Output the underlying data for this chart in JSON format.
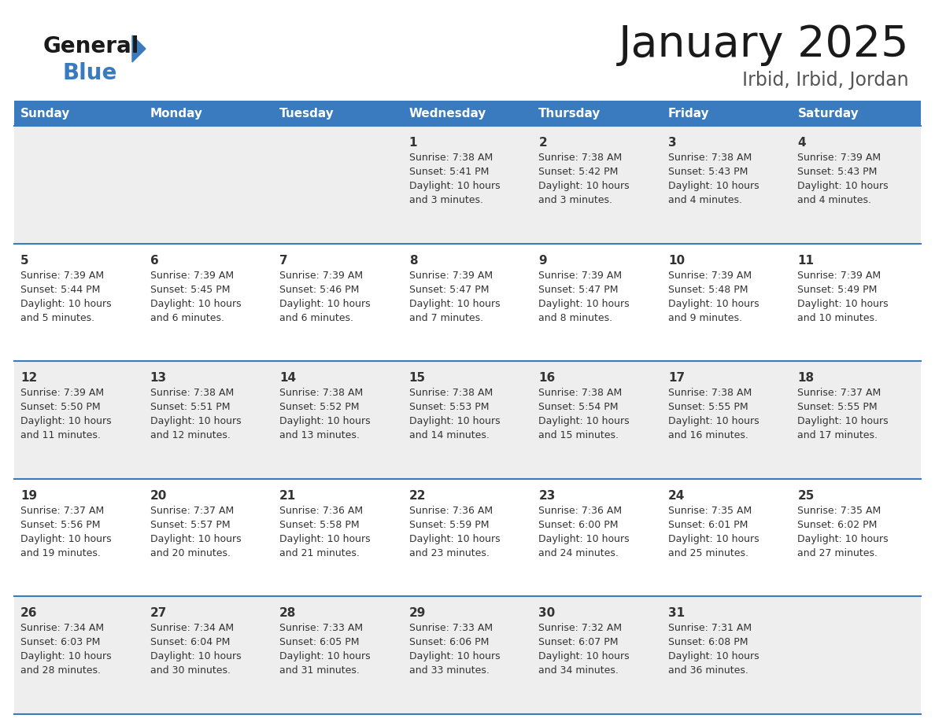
{
  "title": "January 2025",
  "subtitle": "Irbid, Irbid, Jordan",
  "header_color": "#3a7bbf",
  "header_text_color": "#ffffff",
  "day_names": [
    "Sunday",
    "Monday",
    "Tuesday",
    "Wednesday",
    "Thursday",
    "Friday",
    "Saturday"
  ],
  "row_colors": [
    "#eeeeee",
    "#ffffff",
    "#eeeeee",
    "#ffffff",
    "#eeeeee"
  ],
  "border_color": "#3a7bbf",
  "cell_text_color": "#333333",
  "day_num_color": "#333333",
  "title_fontsize": 36,
  "subtitle_fontsize": 16,
  "header_fontsize": 11,
  "day_num_fontsize": 11,
  "cell_fontsize": 9,
  "calendar": [
    [
      {
        "day": null,
        "sunrise": null,
        "sunset": null,
        "daylight": null
      },
      {
        "day": null,
        "sunrise": null,
        "sunset": null,
        "daylight": null
      },
      {
        "day": null,
        "sunrise": null,
        "sunset": null,
        "daylight": null
      },
      {
        "day": 1,
        "sunrise": "7:38 AM",
        "sunset": "5:41 PM",
        "daylight": "10 hours\nand 3 minutes."
      },
      {
        "day": 2,
        "sunrise": "7:38 AM",
        "sunset": "5:42 PM",
        "daylight": "10 hours\nand 3 minutes."
      },
      {
        "day": 3,
        "sunrise": "7:38 AM",
        "sunset": "5:43 PM",
        "daylight": "10 hours\nand 4 minutes."
      },
      {
        "day": 4,
        "sunrise": "7:39 AM",
        "sunset": "5:43 PM",
        "daylight": "10 hours\nand 4 minutes."
      }
    ],
    [
      {
        "day": 5,
        "sunrise": "7:39 AM",
        "sunset": "5:44 PM",
        "daylight": "10 hours\nand 5 minutes."
      },
      {
        "day": 6,
        "sunrise": "7:39 AM",
        "sunset": "5:45 PM",
        "daylight": "10 hours\nand 6 minutes."
      },
      {
        "day": 7,
        "sunrise": "7:39 AM",
        "sunset": "5:46 PM",
        "daylight": "10 hours\nand 6 minutes."
      },
      {
        "day": 8,
        "sunrise": "7:39 AM",
        "sunset": "5:47 PM",
        "daylight": "10 hours\nand 7 minutes."
      },
      {
        "day": 9,
        "sunrise": "7:39 AM",
        "sunset": "5:47 PM",
        "daylight": "10 hours\nand 8 minutes."
      },
      {
        "day": 10,
        "sunrise": "7:39 AM",
        "sunset": "5:48 PM",
        "daylight": "10 hours\nand 9 minutes."
      },
      {
        "day": 11,
        "sunrise": "7:39 AM",
        "sunset": "5:49 PM",
        "daylight": "10 hours\nand 10 minutes."
      }
    ],
    [
      {
        "day": 12,
        "sunrise": "7:39 AM",
        "sunset": "5:50 PM",
        "daylight": "10 hours\nand 11 minutes."
      },
      {
        "day": 13,
        "sunrise": "7:38 AM",
        "sunset": "5:51 PM",
        "daylight": "10 hours\nand 12 minutes."
      },
      {
        "day": 14,
        "sunrise": "7:38 AM",
        "sunset": "5:52 PM",
        "daylight": "10 hours\nand 13 minutes."
      },
      {
        "day": 15,
        "sunrise": "7:38 AM",
        "sunset": "5:53 PM",
        "daylight": "10 hours\nand 14 minutes."
      },
      {
        "day": 16,
        "sunrise": "7:38 AM",
        "sunset": "5:54 PM",
        "daylight": "10 hours\nand 15 minutes."
      },
      {
        "day": 17,
        "sunrise": "7:38 AM",
        "sunset": "5:55 PM",
        "daylight": "10 hours\nand 16 minutes."
      },
      {
        "day": 18,
        "sunrise": "7:37 AM",
        "sunset": "5:55 PM",
        "daylight": "10 hours\nand 17 minutes."
      }
    ],
    [
      {
        "day": 19,
        "sunrise": "7:37 AM",
        "sunset": "5:56 PM",
        "daylight": "10 hours\nand 19 minutes."
      },
      {
        "day": 20,
        "sunrise": "7:37 AM",
        "sunset": "5:57 PM",
        "daylight": "10 hours\nand 20 minutes."
      },
      {
        "day": 21,
        "sunrise": "7:36 AM",
        "sunset": "5:58 PM",
        "daylight": "10 hours\nand 21 minutes."
      },
      {
        "day": 22,
        "sunrise": "7:36 AM",
        "sunset": "5:59 PM",
        "daylight": "10 hours\nand 23 minutes."
      },
      {
        "day": 23,
        "sunrise": "7:36 AM",
        "sunset": "6:00 PM",
        "daylight": "10 hours\nand 24 minutes."
      },
      {
        "day": 24,
        "sunrise": "7:35 AM",
        "sunset": "6:01 PM",
        "daylight": "10 hours\nand 25 minutes."
      },
      {
        "day": 25,
        "sunrise": "7:35 AM",
        "sunset": "6:02 PM",
        "daylight": "10 hours\nand 27 minutes."
      }
    ],
    [
      {
        "day": 26,
        "sunrise": "7:34 AM",
        "sunset": "6:03 PM",
        "daylight": "10 hours\nand 28 minutes."
      },
      {
        "day": 27,
        "sunrise": "7:34 AM",
        "sunset": "6:04 PM",
        "daylight": "10 hours\nand 30 minutes."
      },
      {
        "day": 28,
        "sunrise": "7:33 AM",
        "sunset": "6:05 PM",
        "daylight": "10 hours\nand 31 minutes."
      },
      {
        "day": 29,
        "sunrise": "7:33 AM",
        "sunset": "6:06 PM",
        "daylight": "10 hours\nand 33 minutes."
      },
      {
        "day": 30,
        "sunrise": "7:32 AM",
        "sunset": "6:07 PM",
        "daylight": "10 hours\nand 34 minutes."
      },
      {
        "day": 31,
        "sunrise": "7:31 AM",
        "sunset": "6:08 PM",
        "daylight": "10 hours\nand 36 minutes."
      },
      {
        "day": null,
        "sunrise": null,
        "sunset": null,
        "daylight": null
      }
    ]
  ]
}
